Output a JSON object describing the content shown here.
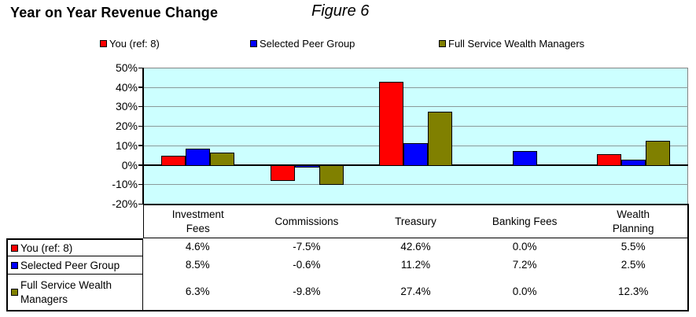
{
  "header": {
    "title": "Year on Year Revenue Change",
    "figure_label": "Figure 6"
  },
  "legend": [
    {
      "label": "You (ref: 8)",
      "color": "#FF0000"
    },
    {
      "label": "Selected Peer Group",
      "color": "#0000FF"
    },
    {
      "label": "Full Service Wealth Managers",
      "color": "#808000"
    }
  ],
  "chart_data": {
    "type": "bar",
    "title": "Year on Year Revenue Change",
    "categories": [
      "Investment Fees",
      "Commissions",
      "Treasury",
      "Banking Fees",
      "Wealth Planning"
    ],
    "series": [
      {
        "name": "You (ref: 8)",
        "color": "#FF0000",
        "values": [
          4.6,
          -7.5,
          42.6,
          0.0,
          5.5
        ]
      },
      {
        "name": "Selected Peer Group",
        "color": "#0000FF",
        "values": [
          8.5,
          -0.6,
          11.2,
          7.2,
          2.5
        ]
      },
      {
        "name": "Full Service Wealth Managers",
        "color": "#808000",
        "values": [
          6.3,
          -9.8,
          27.4,
          0.0,
          12.3
        ]
      }
    ],
    "ylim": [
      -20,
      50
    ],
    "ytick_step": 10,
    "ytick_labels": [
      "50%",
      "40%",
      "30%",
      "20%",
      "10%",
      "0%",
      "-10%",
      "-20%"
    ],
    "grid": true,
    "legend_position": "top",
    "plot_bg": "#CCFFFF",
    "zero_values_not_drawn": true
  },
  "table": {
    "columns": [
      "Investment\nFees",
      "Commissions",
      "Treasury",
      "Banking Fees",
      "Wealth\nPlanning"
    ],
    "row_labels": [
      "You (ref: 8)",
      "Selected Peer Group",
      "Full Service Wealth\nManagers"
    ],
    "rows": [
      [
        "4.6%",
        "-7.5%",
        "42.6%",
        "0.0%",
        "5.5%"
      ],
      [
        "8.5%",
        "-0.6%",
        "11.2%",
        "7.2%",
        "2.5%"
      ],
      [
        "6.3%",
        "-9.8%",
        "27.4%",
        "0.0%",
        "12.3%"
      ]
    ]
  }
}
